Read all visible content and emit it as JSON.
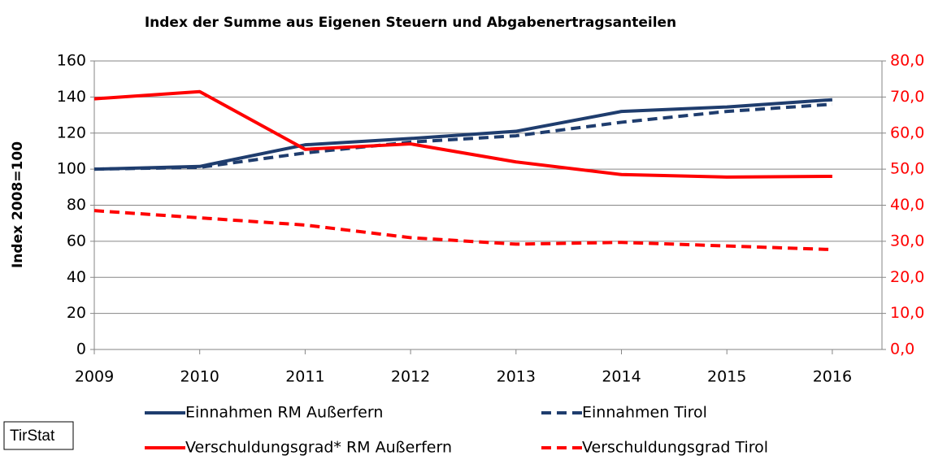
{
  "chart_data": {
    "type": "line",
    "title": "Index der Summe aus Eigenen Steuern und Abgabenertragsanteilen",
    "y_label": "Index 2008=100",
    "annotation": "TirStat",
    "categories": [
      "2009",
      "2010",
      "2011",
      "2012",
      "2013",
      "2014",
      "2015",
      "2016"
    ],
    "ylim": [
      0,
      160
    ],
    "yticks": [
      0,
      20,
      40,
      60,
      80,
      100,
      120,
      140,
      160
    ],
    "y2lim": [
      0,
      80
    ],
    "y2ticks": [
      {
        "value": 0,
        "label": "0,0"
      },
      {
        "value": 10,
        "label": "10,0"
      },
      {
        "value": 20,
        "label": "20,0"
      },
      {
        "value": 30,
        "label": "30,0"
      },
      {
        "value": 40,
        "label": "40,0"
      },
      {
        "value": 50,
        "label": "50,0"
      },
      {
        "value": 60,
        "label": "60,0"
      },
      {
        "value": 70,
        "label": "70,0"
      },
      {
        "value": 80,
        "label": "80,0"
      }
    ],
    "grid": true,
    "series": [
      {
        "name": "Einnahmen RM Außerfern",
        "color": "#1f3d6e",
        "dashed": false,
        "axis": "y",
        "values": [
          100,
          101.5,
          113.5,
          117,
          121,
          132,
          134.5,
          138.5
        ]
      },
      {
        "name": "Einnahmen Tirol",
        "color": "#1f3d6e",
        "dashed": true,
        "axis": "y",
        "values": [
          100,
          101,
          109,
          115,
          118.5,
          126,
          132,
          136
        ]
      },
      {
        "name": "Verschuldungsgrad* RM Außerfern",
        "color": "#ff0000",
        "dashed": false,
        "axis": "y2",
        "values": [
          69.5,
          71.5,
          55.5,
          57,
          52,
          48.5,
          47.8,
          48
        ]
      },
      {
        "name": "Verschuldungsgrad Tirol",
        "color": "#ff0000",
        "dashed": true,
        "axis": "y2",
        "values": [
          38.5,
          36.5,
          34.5,
          31,
          29.2,
          29.7,
          28.7,
          27.7
        ]
      }
    ]
  }
}
